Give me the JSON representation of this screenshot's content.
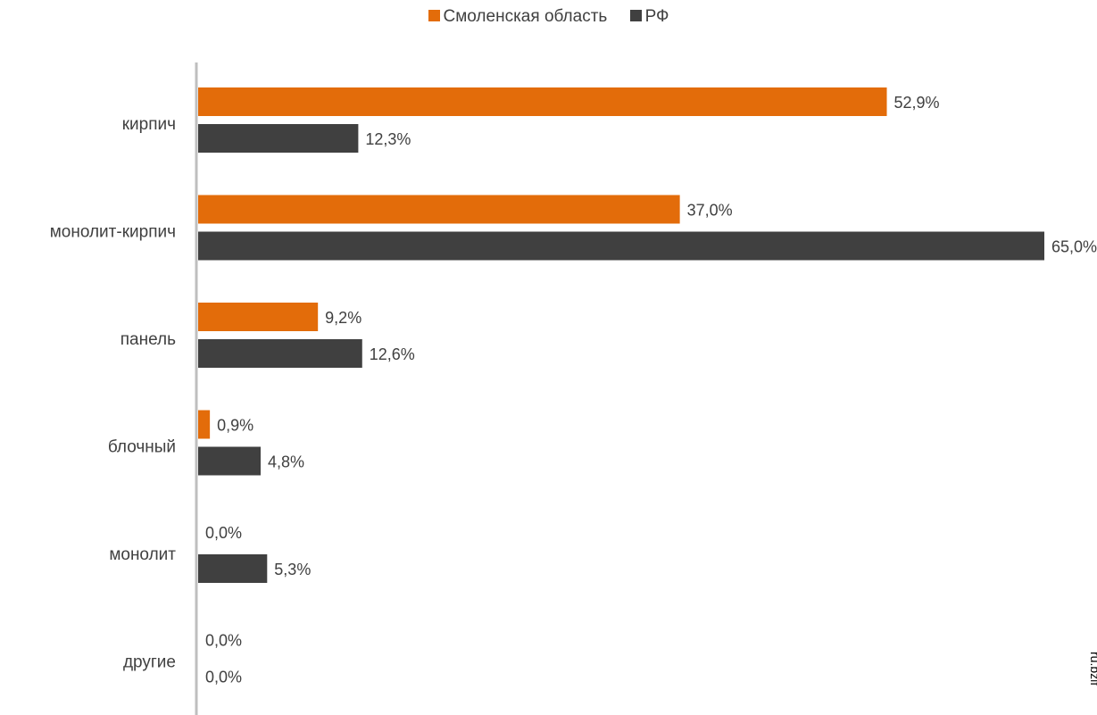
{
  "chart_data": {
    "type": "bar",
    "orientation": "horizontal",
    "categories": [
      "кирпич",
      "монолит-кирпич",
      "панель",
      "блочный",
      "монолит",
      "другие"
    ],
    "series": [
      {
        "name": "Смоленская область",
        "color": "#E36C0A",
        "values": [
          52.9,
          37.0,
          9.2,
          0.9,
          0.0,
          0.0
        ],
        "labels": [
          "52,9%",
          "37,0%",
          "9,2%",
          "0,9%",
          "0,0%",
          "0,0%"
        ]
      },
      {
        "name": "РФ",
        "color": "#404040",
        "values": [
          12.3,
          65.0,
          12.6,
          4.8,
          5.3,
          0.0
        ],
        "labels": [
          "12,3%",
          "65,0%",
          "12,6%",
          "4,8%",
          "5,3%",
          "0,0%"
        ]
      }
    ],
    "xlim": [
      0,
      65
    ],
    "legend_position": "top",
    "grid": false
  },
  "watermark": "ru.bzif"
}
